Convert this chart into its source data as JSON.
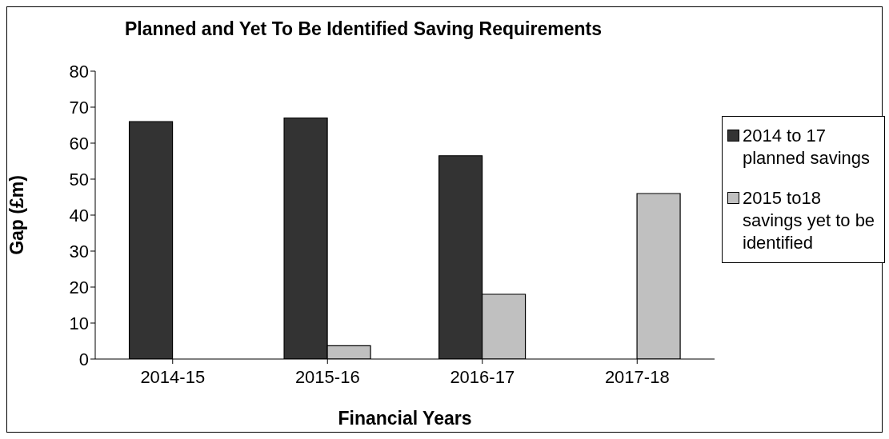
{
  "chart_data": {
    "type": "bar",
    "title": "Planned and Yet To Be Identified Saving Requirements",
    "xlabel": "Financial Years",
    "ylabel": "Gap (£m)",
    "categories": [
      "2014-15",
      "2015-16",
      "2016-17",
      "2017-18"
    ],
    "series": [
      {
        "name": "2014 to 17 planned savings",
        "color": "#333333",
        "values": [
          66,
          67,
          56.5,
          null
        ]
      },
      {
        "name": "2015 to18 savings yet to be identified",
        "color": "#c0c0c0",
        "values": [
          null,
          3.7,
          18,
          46
        ]
      }
    ],
    "ylim": [
      0,
      80
    ],
    "yticks": [
      0,
      10,
      20,
      30,
      40,
      50,
      60,
      70,
      80
    ],
    "grid": false,
    "legend": "right"
  }
}
